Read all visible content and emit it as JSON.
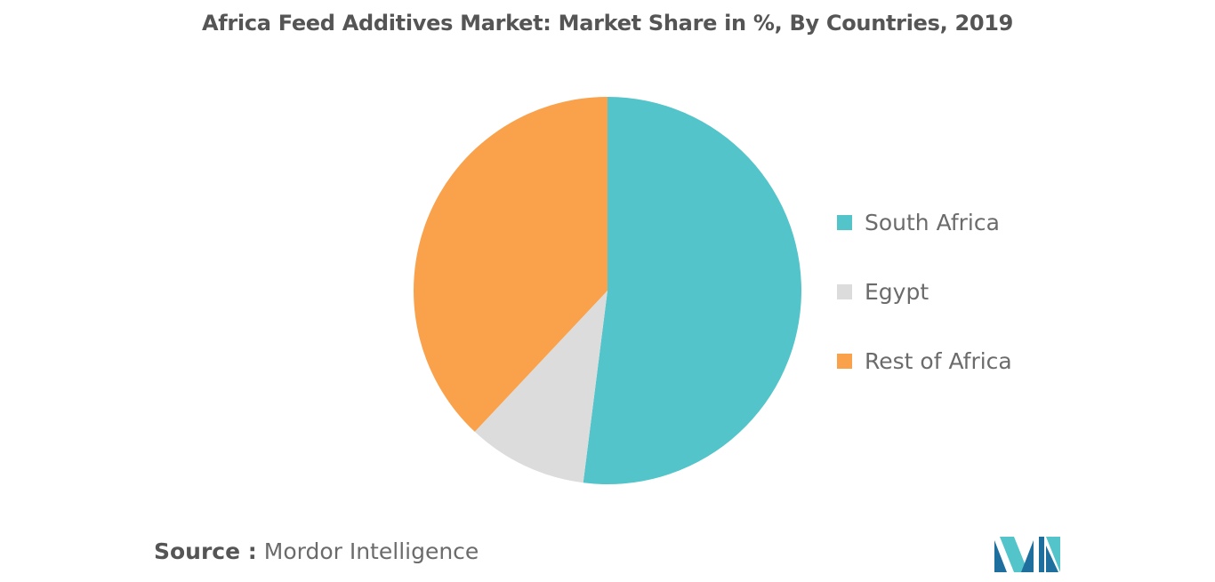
{
  "colors": {
    "south_africa": "#52c4ca",
    "egypt": "#dcdcdc",
    "rest_of_africa": "#f9a14b",
    "title": "#555555",
    "text": "#6b6b6b",
    "logo_dark": "#1f6f9e",
    "logo_light": "#52c4ca"
  },
  "chart_data": {
    "type": "pie",
    "title": "Africa Feed Additives Market: Market Share in %, By Countries, 2019",
    "legend_position": "right",
    "start_angle_deg": 0,
    "direction": "clockwise",
    "slices": [
      {
        "label": "South Africa",
        "value": 52,
        "color": "#52c4ca"
      },
      {
        "label": "Egypt",
        "value": 10,
        "color": "#dcdcdc"
      },
      {
        "label": "Rest of Africa",
        "value": 38,
        "color": "#f9a14b"
      }
    ]
  },
  "legend": {
    "items": [
      {
        "label": "South Africa",
        "color": "#52c4ca"
      },
      {
        "label": "Egypt",
        "color": "#dcdcdc"
      },
      {
        "label": "Rest of Africa",
        "color": "#f9a14b"
      }
    ]
  },
  "source": {
    "prefix": "Source :",
    "text": "Mordor Intelligence"
  },
  "logo": {
    "icon": "mordor-intelligence-logo-icon"
  }
}
